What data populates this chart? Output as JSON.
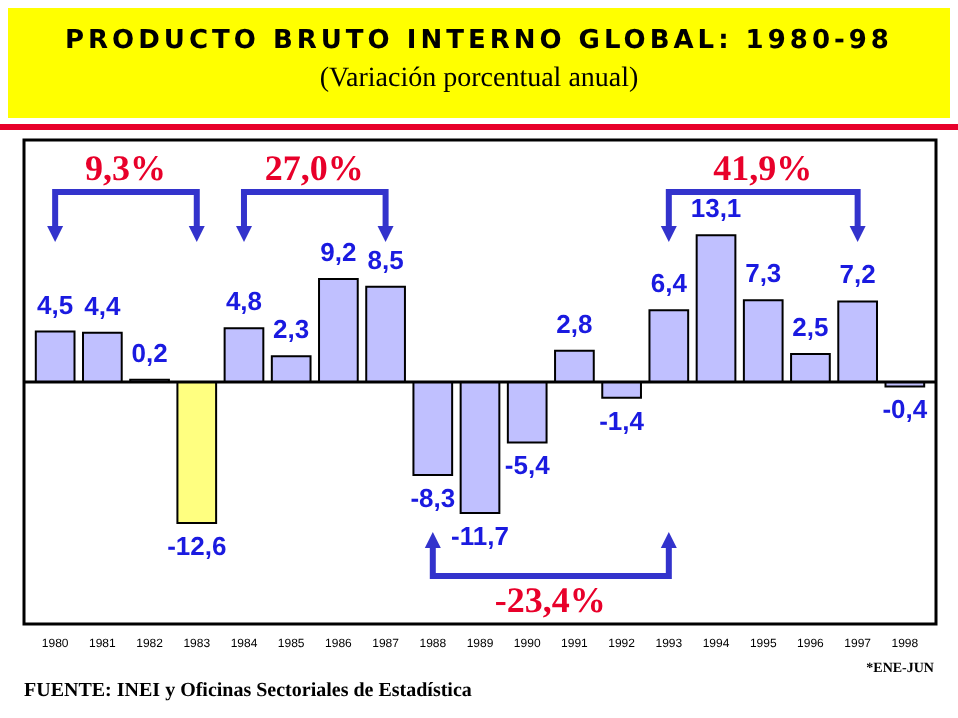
{
  "chart_data": {
    "type": "bar",
    "title": "PRODUCTO BRUTO INTERNO GLOBAL: 1980-98",
    "subtitle": "(Variación porcentual anual)",
    "categories": [
      "1980",
      "1981",
      "1982",
      "1983",
      "1984",
      "1985",
      "1986",
      "1987",
      "1988",
      "1989",
      "1990",
      "1991",
      "1992",
      "1993",
      "1994",
      "1995",
      "1996",
      "1997",
      "1998"
    ],
    "values": [
      4.5,
      4.4,
      0.2,
      -12.6,
      4.8,
      2.3,
      9.2,
      8.5,
      -8.3,
      -11.7,
      -5.4,
      2.8,
      -1.4,
      6.4,
      13.1,
      7.3,
      2.5,
      7.2,
      -0.4
    ],
    "colors": [
      "#c0c0ff",
      "#c0c0ff",
      "#c0c0ff",
      "#ffff80",
      "#c0c0ff",
      "#c0c0ff",
      "#c0c0ff",
      "#c0c0ff",
      "#c0c0ff",
      "#c0c0ff",
      "#c0c0ff",
      "#c0c0ff",
      "#c0c0ff",
      "#c0c0ff",
      "#c0c0ff",
      "#c0c0ff",
      "#c0c0ff",
      "#c0c0ff",
      "#c0c0ff"
    ],
    "value_labels": [
      "4,5",
      "4,4",
      "0,2",
      "-12,6",
      "4,8",
      "2,3",
      "9,2",
      "8,5",
      "-8,3",
      "-11,7",
      "-5,4",
      "2,8",
      "-1,4",
      "6,4",
      "13,1",
      "7,3",
      "2,5",
      "7,2",
      "-0,4"
    ],
    "annotations": [
      "9,3%",
      "27,0%",
      "41,9%",
      "-23,4%",
      "*ENE-JUN",
      "FUENTE: INEI y Oficinas Sectoriales de Estadística"
    ]
  }
}
